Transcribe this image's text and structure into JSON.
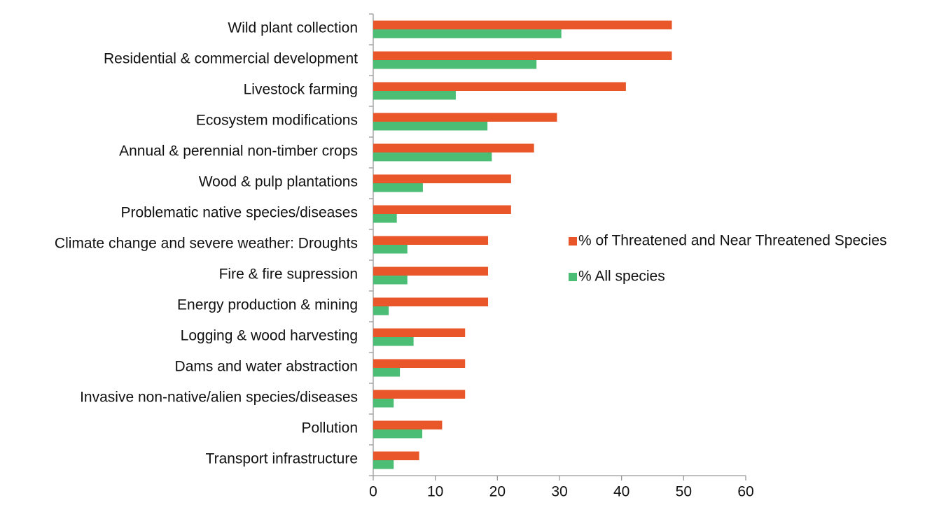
{
  "chart_data": {
    "type": "bar",
    "orientation": "horizontal",
    "categories": [
      "Wild plant collection",
      "Residential & commercial development",
      "Livestock farming",
      "Ecosystem modifications",
      "Annual & perennial non-timber crops",
      "Wood & pulp plantations",
      "Problematic native species/diseases",
      "Climate change and severe weather: Droughts",
      "Fire & fire supression",
      "Energy production & mining",
      "Logging & wood harvesting",
      "Dams and water abstraction",
      "Invasive non-native/alien species/diseases",
      "Pollution",
      "Transport infrastructure"
    ],
    "series": [
      {
        "name": "% of Threatened and Near Threatened Species",
        "color": "#e8562a",
        "values": [
          48.1,
          48.1,
          40.7,
          29.6,
          25.9,
          22.2,
          22.2,
          18.5,
          18.5,
          18.5,
          14.8,
          14.8,
          14.8,
          11.1,
          7.4
        ]
      },
      {
        "name": "% All species",
        "color": "#4cbd74",
        "values": [
          30.3,
          26.3,
          13.3,
          18.4,
          19.1,
          8.0,
          3.8,
          5.5,
          5.5,
          2.5,
          6.5,
          4.3,
          3.3,
          7.9,
          3.3
        ]
      }
    ],
    "xlim": [
      0,
      60
    ],
    "xticks": [
      0,
      10,
      20,
      30,
      40,
      50,
      60
    ],
    "grid": false,
    "legend": "right"
  }
}
